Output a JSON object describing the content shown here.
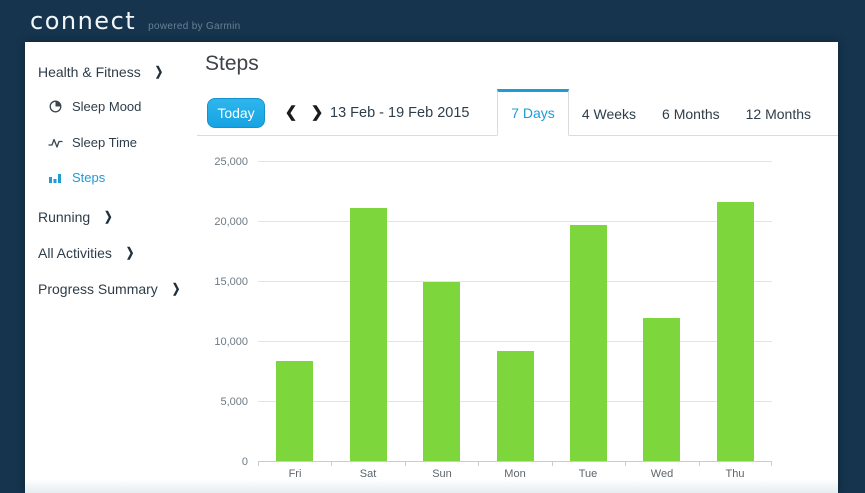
{
  "colors": {
    "header_bg": "#16344e",
    "accent_blue": "#1e9cd7",
    "today_button_blue": "#1da4e3",
    "bar_green": "#7ed63d",
    "gridline": "#e2e5e8"
  },
  "header": {
    "logo": "connect",
    "powered_by": "powered by Garmin"
  },
  "sidebar": {
    "chevron_glyph": "❯",
    "sections": [
      {
        "label": "Health & Fitness",
        "expanded": true,
        "children": [
          {
            "label": "Sleep Mood",
            "icon": "sleep-mood-icon",
            "active": false
          },
          {
            "label": "Sleep Time",
            "icon": "sleep-time-icon",
            "active": false
          },
          {
            "label": "Steps",
            "icon": "steps-icon",
            "active": true
          }
        ]
      },
      {
        "label": "Running"
      },
      {
        "label": "All Activities"
      },
      {
        "label": "Progress Summary"
      }
    ]
  },
  "main": {
    "title": "Steps",
    "controls": {
      "today_label": "Today",
      "prev_icon": "❮",
      "next_icon": "❯",
      "date_range": "13 Feb - 19 Feb 2015"
    },
    "tabs": [
      {
        "label": "7 Days",
        "active": true
      },
      {
        "label": "4 Weeks",
        "active": false
      },
      {
        "label": "6 Months",
        "active": false
      },
      {
        "label": "12 Months",
        "active": false
      }
    ]
  },
  "chart_data": {
    "type": "bar",
    "title": "Steps, 13 Feb - 19 Feb 2015",
    "categories": [
      "Fri",
      "Sat",
      "Sun",
      "Mon",
      "Tue",
      "Wed",
      "Thu"
    ],
    "values": [
      8300,
      21100,
      14900,
      9200,
      19700,
      11900,
      21600
    ],
    "xlabel": "",
    "ylabel": "",
    "ylim": [
      0,
      25000
    ],
    "ytick_interval": 5000,
    "ytick_labels": [
      "0",
      "5,000",
      "10,000",
      "15,000",
      "20,000",
      "25,000"
    ],
    "bar_color": "#7ed63d",
    "grid": true,
    "legend": false
  }
}
